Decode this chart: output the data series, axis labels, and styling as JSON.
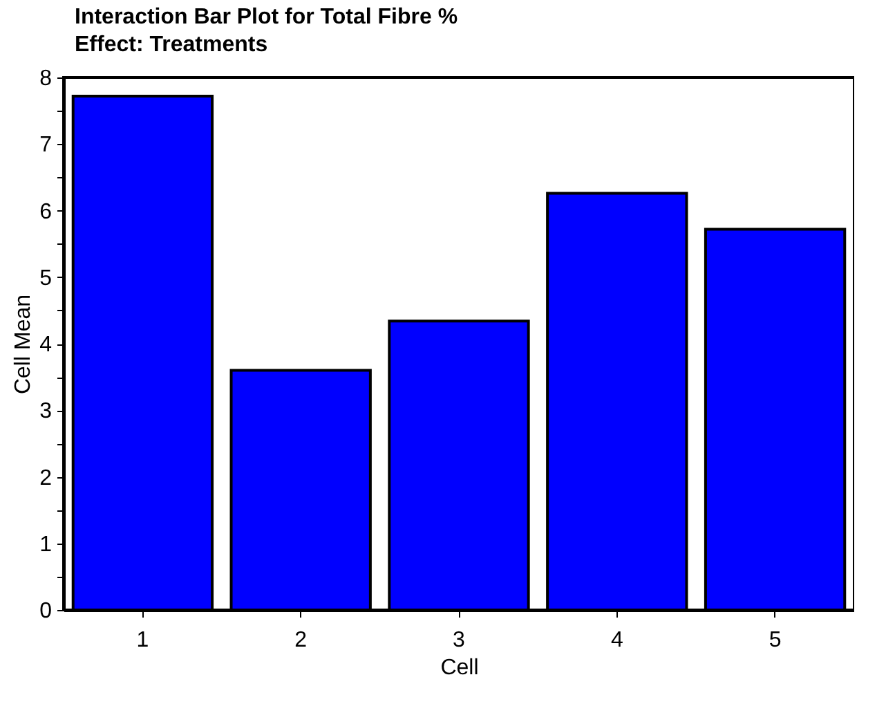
{
  "chart_data": {
    "type": "bar",
    "title": "Interaction Bar Plot for Total Fibre %",
    "subtitle": "Effect: Treatments",
    "xlabel": "Cell",
    "ylabel": "Cell Mean",
    "categories": [
      "1",
      "2",
      "3",
      "4",
      "5"
    ],
    "values": [
      7.72,
      3.6,
      4.34,
      6.26,
      5.72
    ],
    "color": "#0000ff",
    "ylim": [
      0,
      8
    ],
    "yticks": [
      0,
      {
        "value": 0.5,
        "label": null
      },
      1,
      {
        "value": 1.5,
        "label": null
      },
      2,
      {
        "value": 2.5,
        "label": null
      },
      3,
      {
        "value": 3.5,
        "label": null
      },
      4,
      {
        "value": 4.5,
        "label": null
      },
      5,
      {
        "value": 5.5,
        "label": null
      },
      6,
      {
        "value": 6.5,
        "label": null
      },
      7,
      {
        "value": 7.5,
        "label": null
      },
      8
    ],
    "grid": false
  }
}
